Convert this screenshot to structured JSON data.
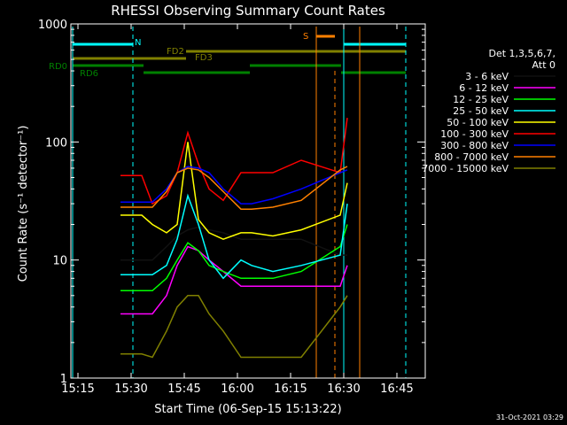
{
  "chart_data": {
    "type": "line",
    "title": "RHESSI Observing Summary Count Rates",
    "xlabel": "Start Time (06-Sep-15 15:13:22)",
    "ylabel": "Count Rate (s⁻¹ detector⁻¹)",
    "yscale": "log",
    "ylim": [
      1,
      1000
    ],
    "xlim": [
      "15:13",
      "16:53"
    ],
    "x_ticks": [
      "15:15",
      "15:30",
      "15:45",
      "16:00",
      "16:15",
      "16:30",
      "16:45"
    ],
    "y_ticks": [
      "1",
      "10",
      "100",
      "1000"
    ],
    "grid": false,
    "legend_placement": "right",
    "legend_header": [
      "Det 1,3,5,6,7,",
      "Att 0"
    ],
    "footer_date": "31-Oct-2021 03:29",
    "series": [
      {
        "name": "3 - 6 keV",
        "color": "#000000",
        "x": [
          "15:27",
          "15:33",
          "15:36",
          "15:40",
          "15:43",
          "15:46",
          "15:49",
          "15:52",
          "15:56",
          "16:01",
          "16:04",
          "16:10",
          "16:18",
          "16:29",
          "16:31"
        ],
        "y": [
          10,
          10,
          10,
          13,
          16,
          18,
          19,
          18,
          17,
          15,
          15,
          15,
          15,
          11,
          11
        ]
      },
      {
        "name": "6 - 12 keV",
        "color": "#ff00ff",
        "x": [
          "15:27",
          "15:33",
          "15:36",
          "15:40",
          "15:43",
          "15:46",
          "15:49",
          "15:52",
          "15:56",
          "16:01",
          "16:04",
          "16:10",
          "16:18",
          "16:29",
          "16:31"
        ],
        "y": [
          3.5,
          3.5,
          3.5,
          5,
          9,
          13,
          12,
          10,
          8,
          6,
          6,
          6,
          6,
          6,
          9
        ]
      },
      {
        "name": "12 - 25 keV",
        "color": "#00ff00",
        "x": [
          "15:27",
          "15:33",
          "15:36",
          "15:40",
          "15:43",
          "15:46",
          "15:49",
          "15:52",
          "15:56",
          "16:01",
          "16:04",
          "16:10",
          "16:18",
          "16:29",
          "16:31"
        ],
        "y": [
          5.5,
          5.5,
          5.5,
          7,
          10,
          14,
          12,
          9,
          8,
          7,
          7,
          7,
          8,
          13,
          20
        ]
      },
      {
        "name": "25 - 50 keV",
        "color": "#00ffff",
        "x": [
          "15:27",
          "15:33",
          "15:36",
          "15:40",
          "15:43",
          "15:46",
          "15:49",
          "15:52",
          "15:56",
          "16:01",
          "16:04",
          "16:10",
          "16:18",
          "16:29",
          "16:31"
        ],
        "y": [
          7.5,
          7.5,
          7.5,
          9,
          15,
          35,
          20,
          10,
          7,
          10,
          9,
          8,
          9,
          11,
          30
        ]
      },
      {
        "name": "50 - 100 keV",
        "color": "#ffff00",
        "x": [
          "15:27",
          "15:33",
          "15:36",
          "15:40",
          "15:43",
          "15:46",
          "15:49",
          "15:52",
          "15:56",
          "16:01",
          "16:04",
          "16:10",
          "16:18",
          "16:29",
          "16:31"
        ],
        "y": [
          24,
          24,
          20,
          17,
          20,
          100,
          22,
          17,
          15,
          17,
          17,
          16,
          18,
          24,
          45
        ]
      },
      {
        "name": "100 - 300 keV",
        "color": "#ff0000",
        "x": [
          "15:27",
          "15:33",
          "15:36",
          "15:40",
          "15:43",
          "15:46",
          "15:49",
          "15:52",
          "15:56",
          "16:01",
          "16:04",
          "16:10",
          "16:18",
          "16:29",
          "16:31"
        ],
        "y": [
          52,
          52,
          30,
          35,
          55,
          120,
          65,
          40,
          32,
          55,
          55,
          55,
          70,
          55,
          160
        ]
      },
      {
        "name": "300 - 800 keV",
        "color": "#0000ff",
        "x": [
          "15:27",
          "15:33",
          "15:36",
          "15:40",
          "15:43",
          "15:46",
          "15:49",
          "15:52",
          "15:56",
          "16:01",
          "16:04",
          "16:10",
          "16:18",
          "16:29",
          "16:31"
        ],
        "y": [
          31,
          31,
          31,
          40,
          55,
          62,
          60,
          55,
          40,
          30,
          30,
          33,
          40,
          55,
          58
        ]
      },
      {
        "name": "800 - 7000 keV",
        "color": "#ff8000",
        "x": [
          "15:27",
          "15:33",
          "15:36",
          "15:40",
          "15:43",
          "15:46",
          "15:49",
          "15:52",
          "15:56",
          "16:01",
          "16:04",
          "16:10",
          "16:18",
          "16:29",
          "16:31"
        ],
        "y": [
          28,
          28,
          28,
          38,
          55,
          60,
          58,
          50,
          38,
          27,
          27,
          28,
          32,
          58,
          62
        ]
      },
      {
        "name": "7000 - 15000 keV",
        "color": "#808000",
        "x": [
          "15:27",
          "15:33",
          "15:36",
          "15:40",
          "15:43",
          "15:46",
          "15:49",
          "15:52",
          "15:56",
          "16:01",
          "16:04",
          "16:10",
          "16:18",
          "16:29",
          "16:31"
        ],
        "y": [
          1.6,
          1.6,
          1.5,
          2.5,
          4,
          5,
          5,
          3.5,
          2.5,
          1.5,
          1.5,
          1.5,
          1.5,
          4,
          5
        ]
      }
    ],
    "annotations": [
      {
        "label": "N",
        "color": "#00ffff"
      },
      {
        "label": "FD2",
        "color": "#808000"
      },
      {
        "label": "FD3",
        "color": "#808000"
      },
      {
        "label": "RD0",
        "color": "#008000"
      },
      {
        "label": "RD6",
        "color": "#008000"
      },
      {
        "label": "S",
        "color": "#ff8000"
      }
    ]
  }
}
